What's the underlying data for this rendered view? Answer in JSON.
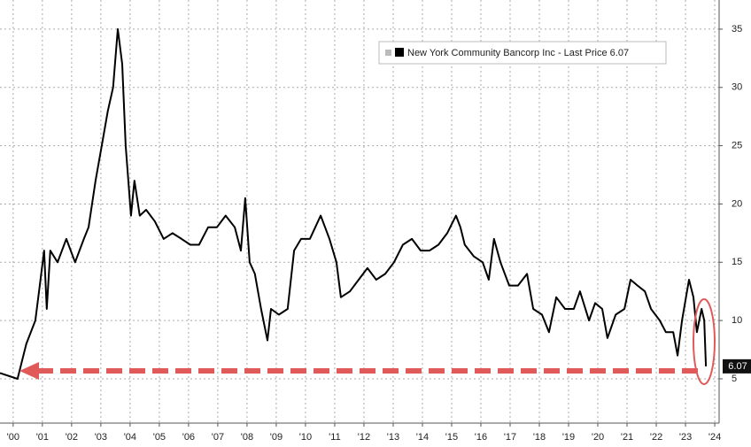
{
  "chart_data": {
    "type": "line",
    "x": [
      1999.55,
      2000.15,
      2000.45,
      2000.76,
      2000.91,
      2001.06,
      2001.15,
      2001.27,
      2001.52,
      2001.82,
      2002.12,
      2002.42,
      2002.58,
      2002.82,
      2003.03,
      2003.24,
      2003.42,
      2003.58,
      2003.73,
      2003.85,
      2004.03,
      2004.15,
      2004.33,
      2004.55,
      2004.85,
      2005.15,
      2005.45,
      2005.76,
      2006.06,
      2006.36,
      2006.67,
      2006.97,
      2007.27,
      2007.58,
      2007.79,
      2007.94,
      2008.09,
      2008.27,
      2008.48,
      2008.7,
      2008.82,
      2009.09,
      2009.39,
      2009.61,
      2009.85,
      2010.15,
      2010.52,
      2010.82,
      2011.06,
      2011.21,
      2011.52,
      2011.82,
      2012.12,
      2012.42,
      2012.73,
      2013.03,
      2013.33,
      2013.64,
      2013.94,
      2014.24,
      2014.55,
      2014.85,
      2015.15,
      2015.3,
      2015.45,
      2015.76,
      2016.06,
      2016.27,
      2016.45,
      2016.67,
      2016.97,
      2017.27,
      2017.58,
      2017.79,
      2018.09,
      2018.33,
      2018.58,
      2018.88,
      2019.18,
      2019.39,
      2019.7,
      2019.91,
      2020.15,
      2020.33,
      2020.61,
      2020.91,
      2021.12,
      2021.36,
      2021.61,
      2021.82,
      2022.12,
      2022.33,
      2022.58,
      2022.73,
      2022.88,
      2023.12,
      2023.27,
      2023.39,
      2023.55,
      2023.64,
      2023.7
    ],
    "series": [
      {
        "name": "New York Community Bancorp Inc - Last Price 6.07",
        "color": "#000000",
        "values": [
          5.5,
          5,
          8,
          10,
          13,
          16,
          11,
          16,
          15,
          17,
          15,
          17,
          18,
          22,
          25,
          28,
          30,
          35,
          32,
          25,
          19,
          22,
          19,
          19.5,
          18.5,
          17,
          17.5,
          17,
          16.5,
          16.5,
          18,
          18,
          19,
          18,
          16,
          20.5,
          15,
          14,
          11,
          8.3,
          11,
          10.5,
          11,
          16,
          17,
          17,
          19,
          17,
          15,
          12,
          12.5,
          13.5,
          14.5,
          13.5,
          14,
          15,
          16.5,
          17,
          16,
          16,
          16.5,
          17.5,
          19,
          18,
          16.5,
          15.5,
          15,
          13.5,
          17,
          15,
          13,
          13,
          14,
          11,
          10.5,
          9,
          12,
          11,
          11,
          12.5,
          10,
          11.5,
          11,
          8.5,
          10.5,
          11,
          13.5,
          13,
          12.5,
          11,
          10,
          9,
          9,
          7,
          10,
          13.5,
          12,
          9,
          11,
          10,
          6.07
        ]
      }
    ],
    "last_price_label": "6.07",
    "xlim": [
      1999.55,
      2024.15
    ],
    "xticks": [
      {
        "value": 2000,
        "label": "'00"
      },
      {
        "value": 2001,
        "label": "'01"
      },
      {
        "value": 2002,
        "label": "'02"
      },
      {
        "value": 2003,
        "label": "'03"
      },
      {
        "value": 2004,
        "label": "'04"
      },
      {
        "value": 2005,
        "label": "'05"
      },
      {
        "value": 2006,
        "label": "'06"
      },
      {
        "value": 2007,
        "label": "'07"
      },
      {
        "value": 2008,
        "label": "'08"
      },
      {
        "value": 2009,
        "label": "'09"
      },
      {
        "value": 2010,
        "label": "'10"
      },
      {
        "value": 2011,
        "label": "'11"
      },
      {
        "value": 2012,
        "label": "'12"
      },
      {
        "value": 2013,
        "label": "'13"
      },
      {
        "value": 2014,
        "label": "'14"
      },
      {
        "value": 2015,
        "label": "'15"
      },
      {
        "value": 2016,
        "label": "'16"
      },
      {
        "value": 2017,
        "label": "'17"
      },
      {
        "value": 2018,
        "label": "'18"
      },
      {
        "value": 2019,
        "label": "'19"
      },
      {
        "value": 2020,
        "label": "'20"
      },
      {
        "value": 2021,
        "label": "'21"
      },
      {
        "value": 2022,
        "label": "'22"
      },
      {
        "value": 2023,
        "label": "'23"
      },
      {
        "value": 2024,
        "label": "'24"
      }
    ],
    "ylim": [
      1.2,
      37.5
    ],
    "yticks": [
      5,
      10,
      15,
      20,
      25,
      30,
      35
    ],
    "grid": true
  }
}
